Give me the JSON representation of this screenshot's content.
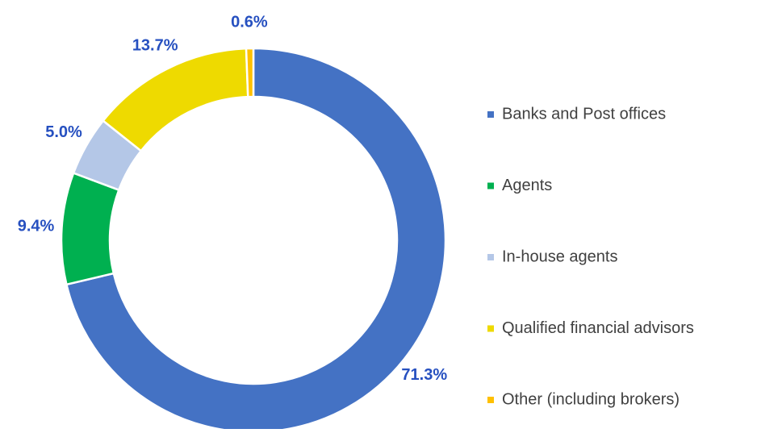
{
  "chart_data": {
    "type": "donut",
    "categories": [
      "Banks and Post offices",
      "Agents",
      "In-house agents",
      "Qualified financial advisors",
      "Other (including brokers)"
    ],
    "values": [
      71.3,
      9.4,
      5.0,
      13.7,
      0.6
    ],
    "value_labels": [
      "71.3%",
      "9.4%",
      "5.0%",
      "13.7%",
      "0.6%"
    ],
    "colors": [
      "#4472c4",
      "#00b050",
      "#b4c7e7",
      "#eeda00",
      "#ffc000"
    ],
    "legend": "right"
  }
}
